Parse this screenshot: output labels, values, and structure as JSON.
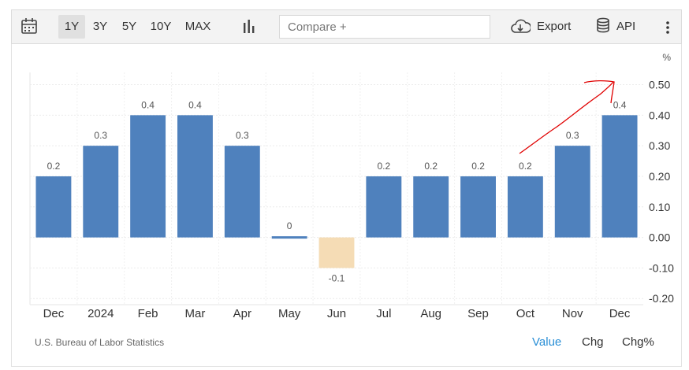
{
  "toolbar": {
    "calendar_icon": "calendar-icon",
    "ranges": [
      "1Y",
      "3Y",
      "5Y",
      "10Y",
      "MAX"
    ],
    "active_range": "1Y",
    "chart_type_icon": "bar-chart-icon",
    "compare_placeholder": "Compare +",
    "export_label": "Export",
    "export_icon": "cloud-download-icon",
    "api_label": "API",
    "api_icon": "database-icon",
    "more_icon": "vertical-dots-icon"
  },
  "chart_data": {
    "type": "bar",
    "categories": [
      "Dec",
      "2024",
      "Feb",
      "Mar",
      "Apr",
      "May",
      "Jun",
      "Jul",
      "Aug",
      "Sep",
      "Oct",
      "Nov",
      "Dec"
    ],
    "values": [
      0.2,
      0.3,
      0.4,
      0.4,
      0.3,
      0,
      -0.1,
      0.2,
      0.2,
      0.2,
      0.2,
      0.3,
      0.4
    ],
    "data_labels": [
      "0.2",
      "0.3",
      "0.4",
      "0.4",
      "0.3",
      "0",
      "-0.1",
      "0.2",
      "0.2",
      "0.2",
      "0.2",
      "0.3",
      "0.4"
    ],
    "yunit": "%",
    "yticks": [
      "0.50",
      "0.40",
      "0.30",
      "0.20",
      "0.10",
      "0.00",
      "-0.10",
      "-0.20"
    ],
    "ytick_values": [
      0.5,
      0.4,
      0.3,
      0.2,
      0.1,
      0,
      -0.1,
      -0.2
    ],
    "ylim": [
      -0.22,
      0.54
    ],
    "positive_color": "#4f81bd",
    "negative_color": "#f5dcb5",
    "grid": true,
    "annotation_color": "#e00000"
  },
  "footer": {
    "source": "U.S. Bureau of Labor Statistics",
    "value_label": "Value",
    "chg_label": "Chg",
    "chgpct_label": "Chg%"
  },
  "colors": {
    "accent_link": "#2a8fd6"
  }
}
